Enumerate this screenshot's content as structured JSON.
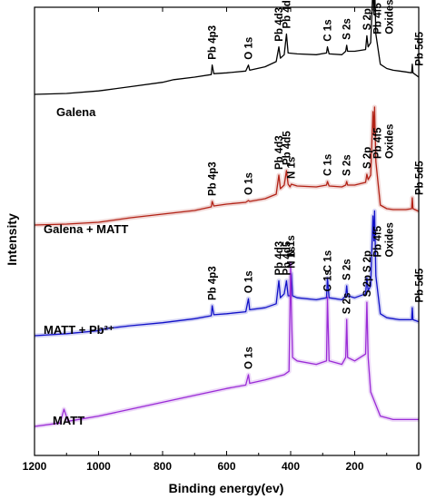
{
  "chart_data": {
    "type": "line",
    "xlabel": "Binding energy(ev)",
    "ylabel": "Intensity",
    "xlim": [
      1200,
      0
    ],
    "x_reversed": true,
    "xticks": [
      1200,
      1000,
      800,
      600,
      400,
      200,
      0
    ],
    "yticks": "none",
    "grid": false,
    "legend": "none",
    "series": [
      {
        "name": "Galena",
        "color": "#000000",
        "baseline": 0.0,
        "points": [
          [
            1200,
            0
          ],
          [
            1100,
            0.01
          ],
          [
            1000,
            0.04
          ],
          [
            980,
            0.05
          ],
          [
            900,
            0.09
          ],
          [
            800,
            0.14
          ],
          [
            765,
            0.17
          ],
          [
            700,
            0.2
          ],
          [
            648,
            0.23
          ],
          [
            645,
            0.34
          ],
          [
            640,
            0.24
          ],
          [
            600,
            0.25
          ],
          [
            540,
            0.27
          ],
          [
            532,
            0.34
          ],
          [
            528,
            0.28
          ],
          [
            480,
            0.32
          ],
          [
            445,
            0.38
          ],
          [
            437,
            0.55
          ],
          [
            432,
            0.42
          ],
          [
            420,
            0.46
          ],
          [
            413,
            0.7
          ],
          [
            408,
            0.48
          ],
          [
            380,
            0.47
          ],
          [
            320,
            0.46
          ],
          [
            288,
            0.48
          ],
          [
            285,
            0.55
          ],
          [
            280,
            0.47
          ],
          [
            240,
            0.46
          ],
          [
            228,
            0.5
          ],
          [
            225,
            0.57
          ],
          [
            222,
            0.5
          ],
          [
            200,
            0.5
          ],
          [
            166,
            0.52
          ],
          [
            162,
            0.68
          ],
          [
            158,
            0.55
          ],
          [
            150,
            0.6
          ],
          [
            143,
            1.25
          ],
          [
            140,
            0.95
          ],
          [
            138,
            1.3
          ],
          [
            134,
            0.7
          ],
          [
            120,
            0.35
          ],
          [
            100,
            0.3
          ],
          [
            80,
            0.28
          ],
          [
            60,
            0.27
          ],
          [
            40,
            0.26
          ],
          [
            22,
            0.25
          ],
          [
            20,
            0.35
          ],
          [
            18,
            0.25
          ],
          [
            0,
            0.2
          ]
        ]
      },
      {
        "name": "Galena + MATT",
        "color": "#b22216",
        "baseline": 0.0,
        "points": [
          [
            1200,
            0
          ],
          [
            1100,
            0.01
          ],
          [
            1000,
            0.03
          ],
          [
            900,
            0.08
          ],
          [
            800,
            0.12
          ],
          [
            700,
            0.16
          ],
          [
            648,
            0.2
          ],
          [
            645,
            0.26
          ],
          [
            640,
            0.21
          ],
          [
            600,
            0.23
          ],
          [
            540,
            0.25
          ],
          [
            532,
            0.27
          ],
          [
            528,
            0.26
          ],
          [
            480,
            0.29
          ],
          [
            445,
            0.34
          ],
          [
            437,
            0.55
          ],
          [
            432,
            0.4
          ],
          [
            420,
            0.44
          ],
          [
            413,
            0.6
          ],
          [
            408,
            0.45
          ],
          [
            402,
            0.42
          ],
          [
            398,
            0.45
          ],
          [
            380,
            0.43
          ],
          [
            320,
            0.42
          ],
          [
            288,
            0.44
          ],
          [
            285,
            0.48
          ],
          [
            280,
            0.43
          ],
          [
            240,
            0.42
          ],
          [
            228,
            0.44
          ],
          [
            225,
            0.48
          ],
          [
            222,
            0.44
          ],
          [
            200,
            0.44
          ],
          [
            166,
            0.47
          ],
          [
            162,
            0.56
          ],
          [
            158,
            0.5
          ],
          [
            150,
            0.55
          ],
          [
            143,
            1.25
          ],
          [
            140,
            1.0
          ],
          [
            138,
            1.3
          ],
          [
            134,
            0.7
          ],
          [
            120,
            0.22
          ],
          [
            100,
            0.18
          ],
          [
            80,
            0.17
          ],
          [
            60,
            0.17
          ],
          [
            40,
            0.17
          ],
          [
            22,
            0.18
          ],
          [
            20,
            0.3
          ],
          [
            18,
            0.18
          ],
          [
            0,
            0.15
          ]
        ]
      },
      {
        "name": "MATT + Pb²⁺",
        "color": "#1010c8",
        "baseline": 0.0,
        "points": [
          [
            1200,
            0
          ],
          [
            1100,
            0.02
          ],
          [
            1000,
            0.05
          ],
          [
            980,
            0.07
          ],
          [
            900,
            0.1
          ],
          [
            800,
            0.13
          ],
          [
            700,
            0.17
          ],
          [
            648,
            0.2
          ],
          [
            645,
            0.3
          ],
          [
            640,
            0.21
          ],
          [
            600,
            0.22
          ],
          [
            540,
            0.24
          ],
          [
            532,
            0.37
          ],
          [
            528,
            0.26
          ],
          [
            480,
            0.28
          ],
          [
            445,
            0.32
          ],
          [
            437,
            0.55
          ],
          [
            432,
            0.38
          ],
          [
            420,
            0.42
          ],
          [
            413,
            0.55
          ],
          [
            408,
            0.4
          ],
          [
            402,
            0.4
          ],
          [
            398,
            0.62
          ],
          [
            394,
            0.4
          ],
          [
            380,
            0.38
          ],
          [
            320,
            0.36
          ],
          [
            288,
            0.38
          ],
          [
            285,
            0.58
          ],
          [
            280,
            0.38
          ],
          [
            240,
            0.36
          ],
          [
            228,
            0.4
          ],
          [
            225,
            0.5
          ],
          [
            222,
            0.4
          ],
          [
            200,
            0.38
          ],
          [
            166,
            0.42
          ],
          [
            162,
            0.58
          ],
          [
            158,
            0.45
          ],
          [
            150,
            0.5
          ],
          [
            143,
            1.2
          ],
          [
            140,
            0.95
          ],
          [
            138,
            1.25
          ],
          [
            134,
            0.6
          ],
          [
            120,
            0.22
          ],
          [
            100,
            0.18
          ],
          [
            80,
            0.17
          ],
          [
            60,
            0.16
          ],
          [
            40,
            0.16
          ],
          [
            22,
            0.16
          ],
          [
            20,
            0.28
          ],
          [
            18,
            0.16
          ],
          [
            0,
            0.14
          ]
        ]
      },
      {
        "name": "MATT",
        "color": "#9a2bd6",
        "baseline": 0.0,
        "points": [
          [
            1200,
            0
          ],
          [
            1120,
            0.02
          ],
          [
            1108,
            0.1
          ],
          [
            1095,
            0.03
          ],
          [
            1000,
            0.06
          ],
          [
            900,
            0.1
          ],
          [
            800,
            0.14
          ],
          [
            700,
            0.18
          ],
          [
            600,
            0.22
          ],
          [
            540,
            0.24
          ],
          [
            532,
            0.3
          ],
          [
            528,
            0.25
          ],
          [
            480,
            0.27
          ],
          [
            420,
            0.3
          ],
          [
            405,
            0.32
          ],
          [
            400,
            0.95
          ],
          [
            398,
            0.7
          ],
          [
            394,
            0.4
          ],
          [
            380,
            0.38
          ],
          [
            320,
            0.36
          ],
          [
            288,
            0.38
          ],
          [
            285,
            0.75
          ],
          [
            280,
            0.38
          ],
          [
            240,
            0.36
          ],
          [
            228,
            0.4
          ],
          [
            225,
            0.62
          ],
          [
            222,
            0.4
          ],
          [
            200,
            0.38
          ],
          [
            166,
            0.42
          ],
          [
            162,
            0.72
          ],
          [
            158,
            0.4
          ],
          [
            150,
            0.2
          ],
          [
            120,
            0.06
          ],
          [
            80,
            0.04
          ],
          [
            40,
            0.04
          ],
          [
            0,
            0.04
          ]
        ]
      }
    ]
  },
  "peak_labels": [
    {
      "series": 0,
      "text": "Pb 4p3",
      "x": 645
    },
    {
      "series": 0,
      "text": "O 1s",
      "x": 532
    },
    {
      "series": 0,
      "text": "Pb 4d3",
      "x": 437
    },
    {
      "series": 0,
      "text": "Pb 4d5",
      "x": 413
    },
    {
      "series": 0,
      "text": "C 1s",
      "x": 285
    },
    {
      "series": 0,
      "text": "S 2s",
      "x": 225
    },
    {
      "series": 0,
      "text": "S 2p",
      "x": 162
    },
    {
      "series": 0,
      "text": "Pb 4f5",
      "x": 143
    },
    {
      "series": 0,
      "text": "Oxides",
      "x": 138
    },
    {
      "series": 0,
      "text": "Pb 5d5",
      "x": 20
    },
    {
      "series": 1,
      "text": "Pb 4p3",
      "x": 645
    },
    {
      "series": 1,
      "text": "O 1s",
      "x": 532
    },
    {
      "series": 1,
      "text": "Pb 4d3",
      "x": 437
    },
    {
      "series": 1,
      "text": "Pb 4d5",
      "x": 413
    },
    {
      "series": 1,
      "text": "N 1s",
      "x": 398
    },
    {
      "series": 1,
      "text": "C 1s",
      "x": 285
    },
    {
      "series": 1,
      "text": "S 2s",
      "x": 225
    },
    {
      "series": 1,
      "text": "S 2p",
      "x": 162
    },
    {
      "series": 1,
      "text": "Pb 4f5",
      "x": 143
    },
    {
      "series": 1,
      "text": "Oxides",
      "x": 138
    },
    {
      "series": 1,
      "text": "Pb 5d5",
      "x": 20
    },
    {
      "series": 2,
      "text": "Pb 4p3",
      "x": 645
    },
    {
      "series": 2,
      "text": "O 1s",
      "x": 532
    },
    {
      "series": 2,
      "text": "Pb 4d3",
      "x": 437
    },
    {
      "series": 2,
      "text": "Pb 4d5",
      "x": 413
    },
    {
      "series": 2,
      "text": "N 1s",
      "x": 398
    },
    {
      "series": 2,
      "text": "C 1s",
      "x": 285
    },
    {
      "series": 2,
      "text": "S 2s",
      "x": 225
    },
    {
      "series": 2,
      "text": "S 2p",
      "x": 162
    },
    {
      "series": 2,
      "text": "Pb 4f5",
      "x": 143
    },
    {
      "series": 2,
      "text": "Oxides",
      "x": 138
    },
    {
      "series": 2,
      "text": "Pb 5d5",
      "x": 20
    },
    {
      "series": 3,
      "text": "O 1s",
      "x": 532
    },
    {
      "series": 3,
      "text": "N 1s",
      "x": 400
    },
    {
      "series": 3,
      "text": "C 1s",
      "x": 285
    },
    {
      "series": 3,
      "text": "S 2s",
      "x": 225
    },
    {
      "series": 3,
      "text": "S 2p",
      "x": 162
    }
  ]
}
